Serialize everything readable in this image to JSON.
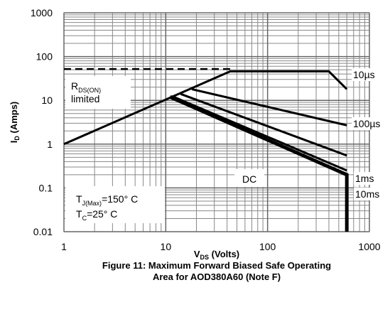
{
  "chart_data": {
    "type": "line",
    "log_x": true,
    "log_y": true,
    "grid": true,
    "minor_grid": true,
    "title": [
      "Figure 11: Maximum Forward Biased Safe Operating",
      "Area for AOD380A60 (Note F)"
    ],
    "x_label": {
      "main": "V",
      "sub": "DS",
      "rest": " (Volts)"
    },
    "y_label": {
      "main": "I",
      "sub": "D",
      "rest": " (Amps)"
    },
    "xlim": [
      1,
      1000
    ],
    "xticks": [
      1,
      10,
      100,
      1000
    ],
    "ylim": [
      0.01,
      1000
    ],
    "yticks": [
      0.01,
      0.1,
      1,
      10,
      100,
      1000
    ],
    "series": [
      {
        "name": "10µs",
        "color": "#000000",
        "x": [
          1,
          43,
          400,
          600
        ],
        "values": [
          1,
          46,
          46,
          18
        ]
      },
      {
        "name": "100µs",
        "color": "#000000",
        "x": [
          18,
          600
        ],
        "values": [
          18,
          2.7
        ]
      },
      {
        "name": "1ms",
        "color": "#000000",
        "x": [
          14,
          600
        ],
        "values": [
          14,
          0.55
        ]
      },
      {
        "name": "10ms",
        "color": "#000000",
        "x": [
          11.5,
          600
        ],
        "values": [
          12.5,
          0.25
        ]
      },
      {
        "name": "DC",
        "color": "#000000",
        "x": [
          11,
          600,
          600
        ],
        "values": [
          12,
          0.2,
          0.01
        ]
      }
    ],
    "limit_line": {
      "x": [
        1,
        43
      ],
      "values": [
        52,
        52
      ],
      "color": "#000000",
      "dashed": true
    },
    "annotations": {
      "rds": {
        "main": "R",
        "sub": "DS(ON)",
        "line2": "limited"
      },
      "tj": {
        "main": "T",
        "sub": "J(Max)",
        "rest": "=150° C"
      },
      "tc": {
        "main": "T",
        "sub": "C",
        "rest": "=25° C"
      }
    }
  }
}
